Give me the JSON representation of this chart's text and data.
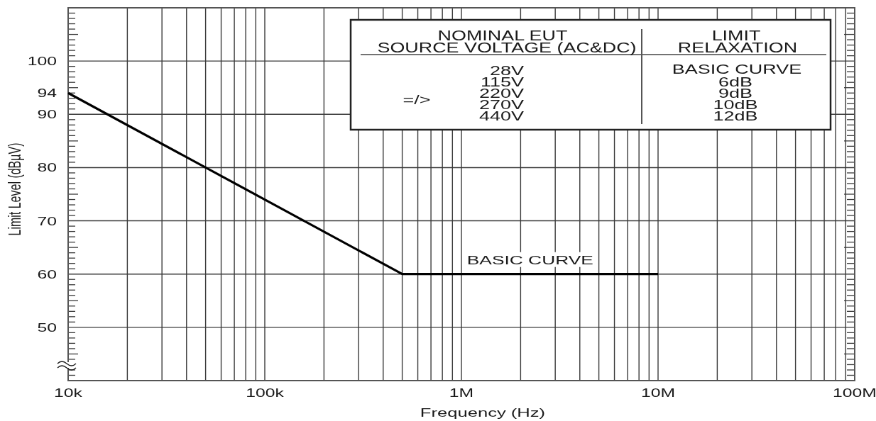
{
  "chart_data": {
    "type": "line",
    "xlabel": "Frequency (Hz)",
    "ylabel": "Limit Level (dBµV)",
    "log": "x",
    "xlim": [
      10000,
      100000000
    ],
    "ylim": [
      40,
      110
    ],
    "xticks": [
      {
        "value": 10000,
        "label": "10k"
      },
      {
        "value": 20000,
        "label": null
      },
      {
        "value": 30000,
        "label": null
      },
      {
        "value": 40000,
        "label": null
      },
      {
        "value": 50000,
        "label": null
      },
      {
        "value": 60000,
        "label": null
      },
      {
        "value": 70000,
        "label": null
      },
      {
        "value": 80000,
        "label": null
      },
      {
        "value": 90000,
        "label": null
      },
      {
        "value": 100000,
        "label": "100k"
      },
      {
        "value": 200000,
        "label": null
      },
      {
        "value": 300000,
        "label": null
      },
      {
        "value": 400000,
        "label": null
      },
      {
        "value": 500000,
        "label": null
      },
      {
        "value": 600000,
        "label": null
      },
      {
        "value": 700000,
        "label": null
      },
      {
        "value": 800000,
        "label": null
      },
      {
        "value": 900000,
        "label": null
      },
      {
        "value": 1000000,
        "label": "1M"
      },
      {
        "value": 2000000,
        "label": null
      },
      {
        "value": 3000000,
        "label": null
      },
      {
        "value": 4000000,
        "label": null
      },
      {
        "value": 5000000,
        "label": null
      },
      {
        "value": 6000000,
        "label": null
      },
      {
        "value": 7000000,
        "label": null
      },
      {
        "value": 8000000,
        "label": null
      },
      {
        "value": 9000000,
        "label": null
      },
      {
        "value": 10000000,
        "label": "10M"
      },
      {
        "value": 20000000,
        "label": null
      },
      {
        "value": 30000000,
        "label": null
      },
      {
        "value": 40000000,
        "label": null
      },
      {
        "value": 50000000,
        "label": null
      },
      {
        "value": 60000000,
        "label": null
      },
      {
        "value": 70000000,
        "label": null
      },
      {
        "value": 80000000,
        "label": null
      },
      {
        "value": 90000000,
        "label": null
      },
      {
        "value": 100000000,
        "label": "100M"
      }
    ],
    "yticks": [
      {
        "value": 41,
        "label": null
      },
      {
        "value": 42,
        "label": null
      },
      {
        "value": 43,
        "label": null
      },
      {
        "value": 44,
        "label": null
      },
      {
        "value": 45,
        "label": null
      },
      {
        "value": 46,
        "label": null
      },
      {
        "value": 47,
        "label": null
      },
      {
        "value": 48,
        "label": null
      },
      {
        "value": 49,
        "label": null
      },
      50,
      {
        "value": 51,
        "label": null
      },
      {
        "value": 52,
        "label": null
      },
      {
        "value": 53,
        "label": null
      },
      {
        "value": 54,
        "label": null
      },
      {
        "value": 55,
        "label": null
      },
      {
        "value": 56,
        "label": null
      },
      {
        "value": 57,
        "label": null
      },
      {
        "value": 58,
        "label": null
      },
      {
        "value": 59,
        "label": null
      },
      60,
      {
        "value": 61,
        "label": null
      },
      {
        "value": 62,
        "label": null
      },
      {
        "value": 63,
        "label": null
      },
      {
        "value": 64,
        "label": null
      },
      {
        "value": 65,
        "label": null
      },
      {
        "value": 66,
        "label": null
      },
      {
        "value": 67,
        "label": null
      },
      {
        "value": 68,
        "label": null
      },
      {
        "value": 69,
        "label": null
      },
      70,
      {
        "value": 71,
        "label": null
      },
      {
        "value": 72,
        "label": null
      },
      {
        "value": 73,
        "label": null
      },
      {
        "value": 74,
        "label": null
      },
      {
        "value": 75,
        "label": null
      },
      {
        "value": 76,
        "label": null
      },
      {
        "value": 77,
        "label": null
      },
      {
        "value": 78,
        "label": null
      },
      {
        "value": 79,
        "label": null
      },
      80,
      {
        "value": 81,
        "label": null
      },
      {
        "value": 82,
        "label": null
      },
      {
        "value": 83,
        "label": null
      },
      {
        "value": 84,
        "label": null
      },
      {
        "value": 85,
        "label": null
      },
      {
        "value": 86,
        "label": null
      },
      {
        "value": 87,
        "label": null
      },
      {
        "value": 88,
        "label": null
      },
      {
        "value": 89,
        "label": null
      },
      90,
      {
        "value": 91,
        "label": null
      },
      {
        "value": 92,
        "label": null
      },
      {
        "value": 93,
        "label": null
      },
      {
        "value": 94,
        "label": "94"
      },
      {
        "value": 95,
        "label": null
      },
      {
        "value": 96,
        "label": null
      },
      {
        "value": 97,
        "label": null
      },
      {
        "value": 98,
        "label": null
      },
      {
        "value": 99,
        "label": null
      },
      100,
      {
        "value": 101,
        "label": null
      },
      {
        "value": 102,
        "label": null
      },
      {
        "value": 103,
        "label": null
      },
      {
        "value": 104,
        "label": null
      },
      {
        "value": 105,
        "label": null
      },
      {
        "value": 106,
        "label": null
      },
      {
        "value": 107,
        "label": null
      },
      {
        "value": 108,
        "label": null
      },
      {
        "value": 109,
        "label": null
      }
    ],
    "grid": true,
    "x": [
      10000,
      500000,
      10000000
    ],
    "series": [
      {
        "name": "BASIC CURVE",
        "color": "#000000",
        "values": [
          94,
          60,
          60
        ]
      }
    ],
    "annotations": [
      "NOMINAL EUT",
      "SOURCE VOLTAGE (AC&DC)",
      "LIMIT",
      "RELAXATION",
      "=/>",
      "28V",
      "115V",
      "220V",
      "270V",
      "440V",
      "BASIC CURVE",
      "6dB",
      "9dB",
      "10dB",
      "12dB"
    ]
  }
}
